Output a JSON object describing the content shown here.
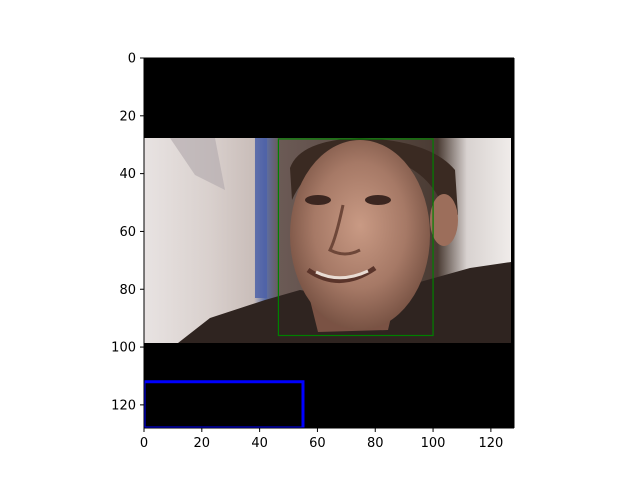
{
  "chart_data": {
    "type": "image",
    "title": "",
    "xlabel": "",
    "ylabel": "",
    "xlim": [
      0,
      128
    ],
    "ylim": [
      128,
      0
    ],
    "y_axis_inverted": true,
    "grid": false,
    "x_ticks": [
      0,
      20,
      40,
      60,
      80,
      100,
      120
    ],
    "y_ticks": [
      0,
      20,
      40,
      60,
      80,
      100,
      120
    ],
    "image_content": {
      "description_note": "",
      "photo_extent_y": [
        27.5,
        98.5
      ],
      "photo_extent_x": [
        0,
        127
      ]
    },
    "boxes": [
      {
        "color": "#008000",
        "x0": 46.5,
        "y0": 28,
        "x1": 100,
        "y1": 96
      },
      {
        "color": "#0000ff",
        "x0": 0,
        "y0": 112,
        "x1": 55,
        "y1": 128
      }
    ]
  },
  "colors": {
    "background": "#000000",
    "green_box": "#008000",
    "blue_box": "#0000ff"
  }
}
